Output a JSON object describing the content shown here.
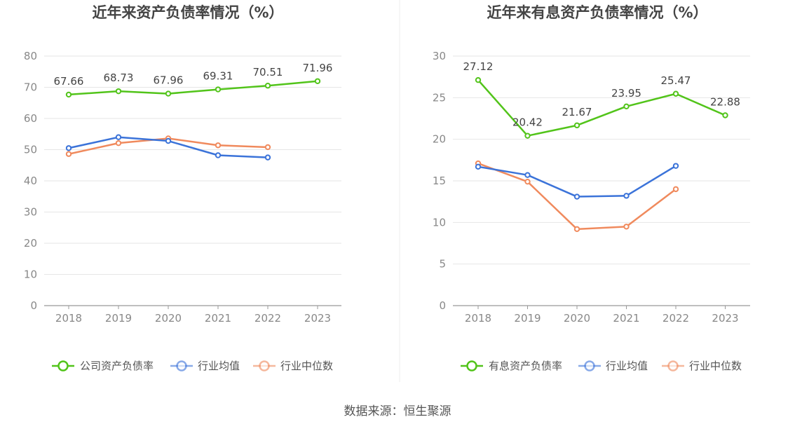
{
  "source": "数据来源：恒生聚源",
  "chart_data": [
    {
      "type": "line",
      "title": "近年来资产负债率情况（%）",
      "categories": [
        "2018",
        "2019",
        "2020",
        "2021",
        "2022",
        "2023"
      ],
      "ylim": [
        0,
        80
      ],
      "yticks": [
        0,
        10,
        20,
        30,
        40,
        50,
        60,
        70,
        80
      ],
      "grid": true,
      "legend": "bottom",
      "series": [
        {
          "name": "公司资产负债率",
          "color": "#52c41a",
          "values": [
            67.66,
            68.73,
            67.96,
            69.31,
            70.51,
            71.96
          ],
          "labels": [
            "67.66",
            "68.73",
            "67.96",
            "69.31",
            "70.51",
            "71.96"
          ]
        },
        {
          "name": "行业均值",
          "color": "#3b73d9",
          "values": [
            50.5,
            54.0,
            52.8,
            48.2,
            47.5,
            null
          ]
        },
        {
          "name": "行业中位数",
          "color": "#f08a5d",
          "values": [
            48.6,
            52.1,
            53.6,
            51.4,
            50.8,
            null
          ]
        }
      ]
    },
    {
      "type": "line",
      "title": "近年来有息资产负债率情况（%）",
      "categories": [
        "2018",
        "2019",
        "2020",
        "2021",
        "2022",
        "2023"
      ],
      "ylim": [
        0,
        30
      ],
      "yticks": [
        0,
        5,
        10,
        15,
        20,
        25,
        30
      ],
      "grid": true,
      "legend": "bottom",
      "series": [
        {
          "name": "有息资产负债率",
          "color": "#52c41a",
          "values": [
            27.12,
            20.42,
            21.67,
            23.95,
            25.47,
            22.88
          ],
          "labels": [
            "27.12",
            "20.42",
            "21.67",
            "23.95",
            "25.47",
            "22.88"
          ]
        },
        {
          "name": "行业均值",
          "color": "#3b73d9",
          "values": [
            16.7,
            15.7,
            13.1,
            13.2,
            16.8,
            null
          ]
        },
        {
          "name": "行业中位数",
          "color": "#f08a5d",
          "values": [
            17.1,
            14.9,
            9.2,
            9.5,
            14.0,
            null
          ]
        }
      ]
    }
  ]
}
